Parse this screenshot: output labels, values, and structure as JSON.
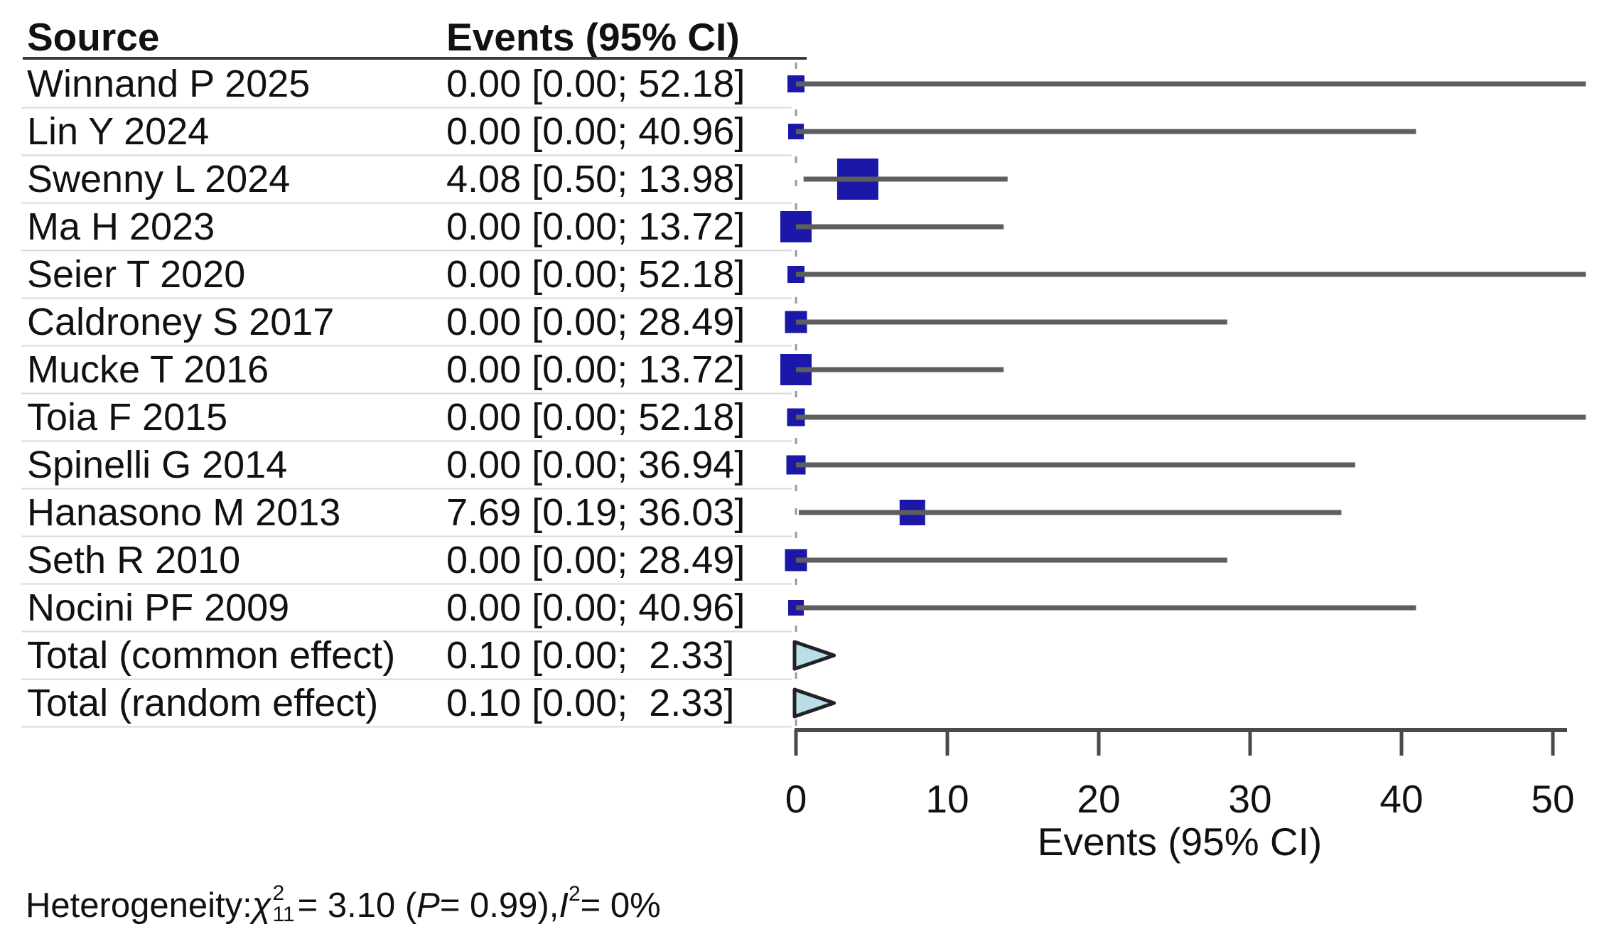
{
  "header": {
    "source_col": "Source",
    "events_col": "Events (95% CI)"
  },
  "chart_data": {
    "type": "forest",
    "xlabel": "Events (95% CI)",
    "xlim": [
      0,
      50
    ],
    "x_ticks": [
      "0",
      "10",
      "20",
      "30",
      "40",
      "50"
    ],
    "zero_reference_line": 0,
    "legend_position": "none",
    "grid": false,
    "colors": {
      "square_fill": "#1b17a8",
      "pooled_triangle_fill": "#b9dde9",
      "pooled_triangle_stroke": "#222222",
      "ci_line": "#5e5e5e",
      "axis": "#4a4a4a",
      "zero_dash_line": "#9a9a9a",
      "row_separator": "#d9d9d9",
      "header_rule": "#3a3a3a"
    },
    "rows": [
      {
        "source": "Winnand P 2025",
        "events": "0.00 [0.00; 52.18]",
        "est": 0.0,
        "lo": 0.0,
        "hi": 52.18,
        "marker": "square",
        "marker_size": 24
      },
      {
        "source": "Lin Y 2024",
        "events": "0.00 [0.00; 40.96]",
        "est": 0.0,
        "lo": 0.0,
        "hi": 40.96,
        "marker": "square",
        "marker_size": 22
      },
      {
        "source": "Swenny L 2024",
        "events": "4.08 [0.50; 13.98]",
        "est": 4.08,
        "lo": 0.5,
        "hi": 13.98,
        "marker": "square",
        "marker_size": 58
      },
      {
        "source": "Ma H 2023",
        "events": "0.00 [0.00; 13.72]",
        "est": 0.0,
        "lo": 0.0,
        "hi": 13.72,
        "marker": "square",
        "marker_size": 44
      },
      {
        "source": "Seier T 2020",
        "events": "0.00 [0.00; 52.18]",
        "est": 0.0,
        "lo": 0.0,
        "hi": 52.18,
        "marker": "square",
        "marker_size": 24
      },
      {
        "source": "Caldroney S 2017",
        "events": "0.00 [0.00; 28.49]",
        "est": 0.0,
        "lo": 0.0,
        "hi": 28.49,
        "marker": "square",
        "marker_size": 31
      },
      {
        "source": "Mucke T 2016",
        "events": "0.00 [0.00; 13.72]",
        "est": 0.0,
        "lo": 0.0,
        "hi": 13.72,
        "marker": "square",
        "marker_size": 44
      },
      {
        "source": "Toia F 2015",
        "events": "0.00 [0.00; 52.18]",
        "est": 0.0,
        "lo": 0.0,
        "hi": 52.18,
        "marker": "square",
        "marker_size": 25
      },
      {
        "source": "Spinelli G 2014",
        "events": "0.00 [0.00; 36.94]",
        "est": 0.0,
        "lo": 0.0,
        "hi": 36.94,
        "marker": "square",
        "marker_size": 27
      },
      {
        "source": "Hanasono M 2013",
        "events": "7.69 [0.19; 36.03]",
        "est": 7.69,
        "lo": 0.19,
        "hi": 36.03,
        "marker": "square",
        "marker_size": 36
      },
      {
        "source": "Seth R 2010",
        "events": "0.00 [0.00; 28.49]",
        "est": 0.0,
        "lo": 0.0,
        "hi": 28.49,
        "marker": "square",
        "marker_size": 31
      },
      {
        "source": "Nocini PF 2009",
        "events": "0.00 [0.00; 40.96]",
        "est": 0.0,
        "lo": 0.0,
        "hi": 40.96,
        "marker": "square",
        "marker_size": 22
      },
      {
        "source": "Total (common effect)",
        "events": "0.10 [0.00;  2.33]",
        "est": 0.1,
        "lo": 0.0,
        "hi": 2.33,
        "marker": "triangle",
        "marker_size": 38
      },
      {
        "source": "Total (random effect)",
        "events": "0.10 [0.00;  2.33]",
        "est": 0.1,
        "lo": 0.0,
        "hi": 2.33,
        "marker": "triangle",
        "marker_size": 38
      }
    ]
  },
  "footer": {
    "heterogeneity": {
      "prefix": "Heterogeneity: ",
      "chi_symbol": "χ",
      "chi_sup": "2",
      "chi_sub": "11",
      "mid": " = 3.10 (",
      "p_label": "P",
      "p_rest": " = 0.99), ",
      "i_label": "I",
      "i_sup": "2",
      "tail": " = 0%"
    }
  }
}
